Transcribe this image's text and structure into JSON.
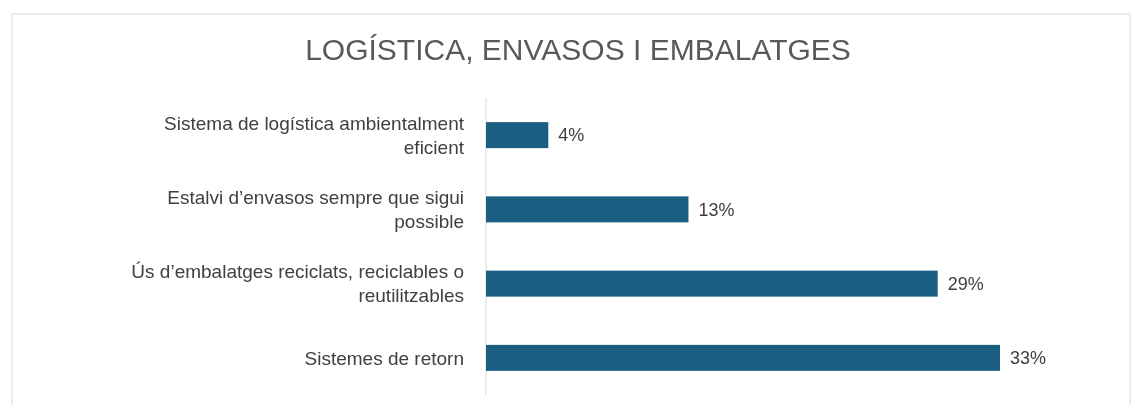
{
  "chart_data": {
    "type": "bar",
    "orientation": "horizontal",
    "title": "LOGÍSTICA, ENVASOS I EMBALATGES",
    "categories": [
      "Sistema de logística ambientalment eficient",
      "Estalvi d’envasos sempre que sigui possible",
      "Ús d’embalatges reciclats, reciclables o reutilitzables",
      "Sistemes de retorn"
    ],
    "values": [
      4,
      13,
      29,
      33
    ],
    "value_labels": [
      "4%",
      "13%",
      "29%",
      "33%"
    ],
    "color": "#1a5f82",
    "xlim": [
      0,
      33
    ]
  }
}
